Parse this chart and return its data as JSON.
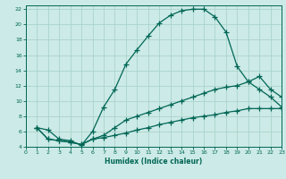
{
  "background_color": "#cceae7",
  "grid_color": "#aad4cc",
  "line_color": "#006655",
  "xlabel": "Humidex (Indice chaleur)",
  "xlim": [
    0,
    23
  ],
  "ylim": [
    4,
    22.5
  ],
  "xticks": [
    0,
    1,
    2,
    3,
    4,
    5,
    6,
    7,
    8,
    9,
    10,
    11,
    12,
    13,
    14,
    15,
    16,
    17,
    18,
    19,
    20,
    21,
    22,
    23
  ],
  "yticks": [
    4,
    6,
    8,
    10,
    12,
    14,
    16,
    18,
    20,
    22
  ],
  "curve1_x": [
    1,
    2,
    3,
    4,
    5,
    6,
    7,
    8,
    9,
    10,
    11,
    12,
    13,
    14,
    15,
    16,
    17,
    18,
    19,
    20,
    21,
    22,
    23
  ],
  "curve1_y": [
    6.5,
    6.2,
    5.0,
    4.8,
    4.2,
    6.0,
    9.2,
    11.5,
    14.8,
    16.7,
    18.5,
    20.2,
    21.2,
    21.8,
    22.0,
    22.0,
    21.0,
    19.0,
    14.5,
    12.5,
    11.5,
    10.5,
    9.2
  ],
  "curve2_x": [
    1,
    2,
    3,
    4,
    5,
    6,
    7,
    8,
    9,
    10,
    11,
    12,
    13,
    14,
    15,
    16,
    17,
    18,
    19,
    20,
    21,
    22,
    23
  ],
  "curve2_y": [
    6.5,
    5.0,
    4.8,
    4.6,
    4.3,
    5.0,
    5.5,
    6.5,
    7.5,
    8.0,
    8.5,
    9.0,
    9.5,
    10.0,
    10.5,
    11.0,
    11.5,
    11.8,
    12.0,
    12.5,
    13.2,
    11.5,
    10.5
  ],
  "curve3_x": [
    1,
    2,
    3,
    4,
    5,
    6,
    7,
    8,
    9,
    10,
    11,
    12,
    13,
    14,
    15,
    16,
    17,
    18,
    19,
    20,
    21,
    22,
    23
  ],
  "curve3_y": [
    6.5,
    5.0,
    4.8,
    4.6,
    4.3,
    5.0,
    5.2,
    5.5,
    5.8,
    6.2,
    6.5,
    6.9,
    7.2,
    7.5,
    7.8,
    8.0,
    8.2,
    8.5,
    8.7,
    9.0,
    9.0,
    9.0,
    9.0
  ]
}
